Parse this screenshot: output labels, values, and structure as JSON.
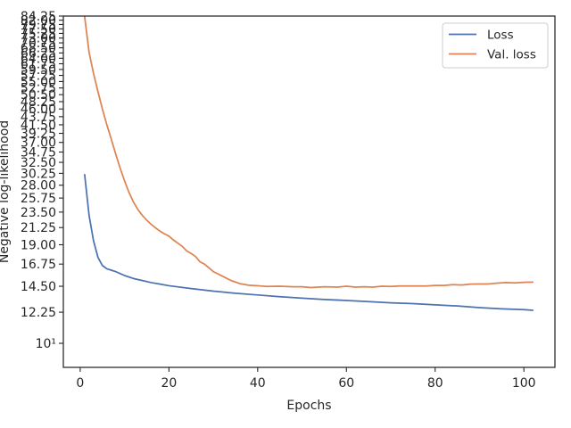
{
  "chart_data": {
    "type": "line",
    "xlabel": "Epochs",
    "ylabel": "Negative log-likelihood",
    "xlim": [
      -3.8,
      107
    ],
    "ylim": [
      8.55,
      84.25
    ],
    "yscale": "log",
    "grid": false,
    "legend_position": "top-right",
    "x_ticks": [
      0,
      20,
      40,
      60,
      80,
      100
    ],
    "x_tick_labels": [
      "0",
      "20",
      "40",
      "60",
      "80",
      "100"
    ],
    "y_ticks": [
      10,
      12.25,
      14.5,
      16.75,
      19,
      21.25,
      23.5,
      25.75,
      28,
      30.25,
      32.5,
      34.75,
      37,
      39.25,
      41.5,
      43.75,
      46,
      48.25,
      50.5,
      52.75,
      55,
      57.25,
      59.5,
      61.75,
      64,
      66.25,
      68.5,
      70.75,
      73,
      75.25,
      77.5,
      79.75,
      82,
      84.25
    ],
    "y_tick_labels": [
      "10¹",
      "12.25",
      "14.50",
      "16.75",
      "19.00",
      "21.25",
      "23.50",
      "25.75",
      "28.00",
      "30.25",
      "32.50",
      "34.75",
      "37.00",
      "39.25",
      "41.50",
      "43.75",
      "46.00",
      "48.25",
      "50.50",
      "52.75",
      "55.00",
      "57.25",
      "59.50",
      "61.75",
      "64.00",
      "66.25",
      "68.50",
      "70.75",
      "73.00",
      "75.25",
      "77.50",
      "79.75",
      "82.00",
      "84.25"
    ],
    "series": [
      {
        "name": "Loss",
        "color": "#4c72b0",
        "points": [
          [
            1,
            30.0
          ],
          [
            2,
            23.0
          ],
          [
            3,
            19.5
          ],
          [
            4,
            17.5
          ],
          [
            5,
            16.6
          ],
          [
            6,
            16.25
          ],
          [
            7,
            16.1
          ],
          [
            8,
            15.95
          ],
          [
            9,
            15.75
          ],
          [
            10,
            15.55
          ],
          [
            12,
            15.25
          ],
          [
            14,
            15.05
          ],
          [
            16,
            14.85
          ],
          [
            18,
            14.7
          ],
          [
            20,
            14.55
          ],
          [
            25,
            14.28
          ],
          [
            30,
            14.05
          ],
          [
            35,
            13.85
          ],
          [
            40,
            13.7
          ],
          [
            45,
            13.55
          ],
          [
            50,
            13.42
          ],
          [
            55,
            13.3
          ],
          [
            60,
            13.22
          ],
          [
            65,
            13.12
          ],
          [
            70,
            13.02
          ],
          [
            75,
            12.95
          ],
          [
            80,
            12.85
          ],
          [
            85,
            12.75
          ],
          [
            90,
            12.62
          ],
          [
            95,
            12.52
          ],
          [
            100,
            12.45
          ],
          [
            102,
            12.4
          ]
        ]
      },
      {
        "name": "Val. loss",
        "color": "#dd8452",
        "points": [
          [
            1,
            84.0
          ],
          [
            2,
            66.5
          ],
          [
            3,
            58.0
          ],
          [
            4,
            51.5
          ],
          [
            5,
            46.0
          ],
          [
            6,
            41.5
          ],
          [
            7,
            37.8
          ],
          [
            8,
            34.3
          ],
          [
            9,
            31.3
          ],
          [
            10,
            28.8
          ],
          [
            11,
            26.7
          ],
          [
            12,
            25.1
          ],
          [
            13,
            23.9
          ],
          [
            14,
            23.0
          ],
          [
            15,
            22.3
          ],
          [
            16,
            21.7
          ],
          [
            17,
            21.2
          ],
          [
            18,
            20.75
          ],
          [
            19,
            20.4
          ],
          [
            20,
            20.1
          ],
          [
            21,
            19.6
          ],
          [
            22,
            19.2
          ],
          [
            23,
            18.8
          ],
          [
            24,
            18.25
          ],
          [
            25,
            17.95
          ],
          [
            26,
            17.6
          ],
          [
            27,
            17.0
          ],
          [
            28,
            16.75
          ],
          [
            29,
            16.35
          ],
          [
            30,
            15.95
          ],
          [
            32,
            15.5
          ],
          [
            34,
            15.05
          ],
          [
            36,
            14.75
          ],
          [
            38,
            14.6
          ],
          [
            40,
            14.55
          ],
          [
            42,
            14.48
          ],
          [
            45,
            14.5
          ],
          [
            48,
            14.45
          ],
          [
            50,
            14.45
          ],
          [
            52,
            14.38
          ],
          [
            55,
            14.45
          ],
          [
            58,
            14.42
          ],
          [
            60,
            14.5
          ],
          [
            62,
            14.42
          ],
          [
            64,
            14.45
          ],
          [
            66,
            14.42
          ],
          [
            68,
            14.5
          ],
          [
            70,
            14.48
          ],
          [
            72,
            14.52
          ],
          [
            75,
            14.52
          ],
          [
            78,
            14.52
          ],
          [
            80,
            14.58
          ],
          [
            82,
            14.58
          ],
          [
            84,
            14.65
          ],
          [
            86,
            14.62
          ],
          [
            88,
            14.7
          ],
          [
            90,
            14.72
          ],
          [
            92,
            14.72
          ],
          [
            94,
            14.8
          ],
          [
            96,
            14.85
          ],
          [
            98,
            14.82
          ],
          [
            100,
            14.88
          ],
          [
            102,
            14.9
          ]
        ]
      }
    ]
  }
}
